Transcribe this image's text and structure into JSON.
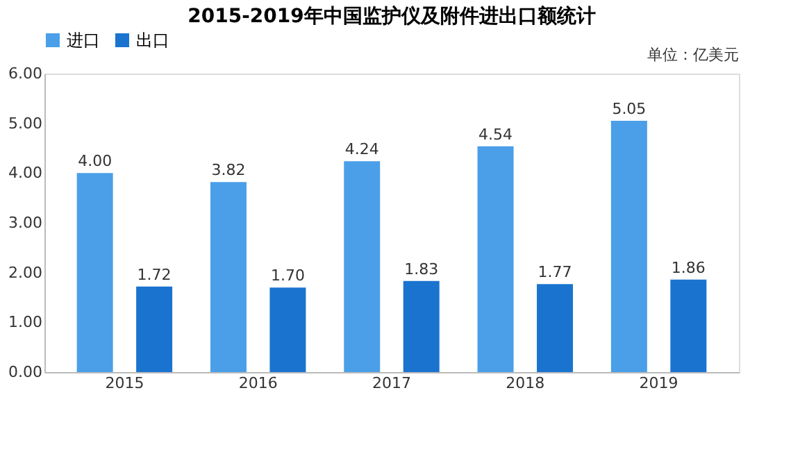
{
  "chart_data": {
    "type": "bar",
    "title": "2015-2019年中国监护仪及附件进出口额统计",
    "annotations": [
      "单位：亿美元"
    ],
    "categories": [
      "2015",
      "2016",
      "2017",
      "2018",
      "2019"
    ],
    "series": [
      {
        "name": "进口",
        "color": "#4a9fe8",
        "values": [
          4.0,
          3.82,
          4.24,
          4.54,
          5.05
        ],
        "value_labels": [
          "4.00",
          "3.82",
          "4.24",
          "4.54",
          "5.05"
        ]
      },
      {
        "name": "出口",
        "color": "#1a74cf",
        "values": [
          1.72,
          1.7,
          1.83,
          1.77,
          1.86
        ],
        "value_labels": [
          "1.72",
          "1.70",
          "1.83",
          "1.77",
          "1.86"
        ]
      }
    ],
    "ylim": [
      0,
      6
    ],
    "yticks": [
      {
        "value": 0,
        "label": "0.00"
      },
      {
        "value": 1,
        "label": "1.00"
      },
      {
        "value": 2,
        "label": "2.00"
      },
      {
        "value": 3,
        "label": "3.00"
      },
      {
        "value": 4,
        "label": "4.00"
      },
      {
        "value": 5,
        "label": "5.00"
      },
      {
        "value": 6,
        "label": "6.00"
      }
    ],
    "legend": "top",
    "grid": false
  }
}
